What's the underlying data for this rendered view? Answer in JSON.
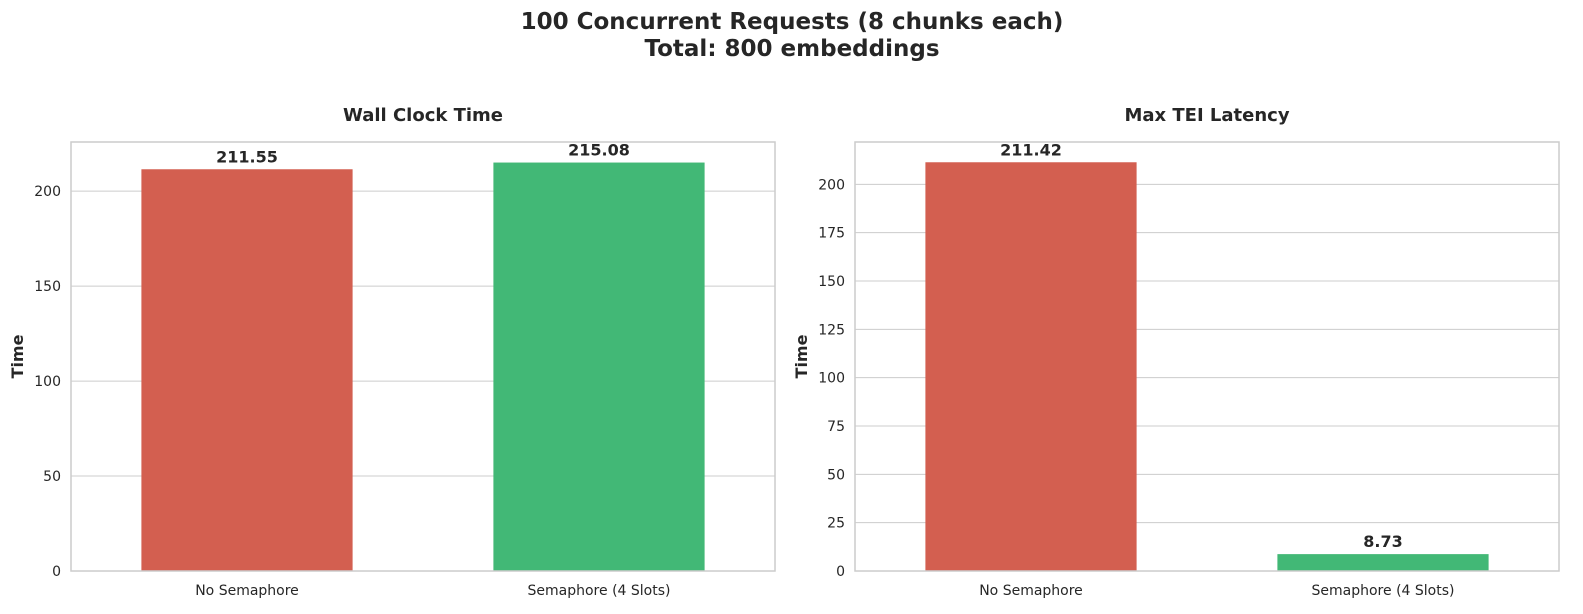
{
  "figure": {
    "title_line1": "100 Concurrent Requests (8 chunks each)",
    "title_line2": "Total: 800 embeddings"
  },
  "colors": {
    "no_semaphore": "#d35f50",
    "semaphore": "#42b876",
    "grid": "#cccccc",
    "spine": "#cccccc",
    "text": "#262626"
  },
  "chart_data": [
    {
      "type": "bar",
      "title": "Wall Clock Time",
      "xlabel": "",
      "ylabel": "Time",
      "categories": [
        "No Semaphore",
        "Semaphore (4 Slots)"
      ],
      "values": [
        211.55,
        215.08
      ],
      "value_labels": [
        "211.55",
        "215.08"
      ],
      "ylim": [
        0,
        225.9
      ],
      "yticks": [
        0,
        50,
        100,
        150,
        200
      ],
      "ytick_labels": [
        "0",
        "50",
        "100",
        "150",
        "200"
      ],
      "grid": "horizontal"
    },
    {
      "type": "bar",
      "title": "Max TEI Latency",
      "xlabel": "",
      "ylabel": "Time",
      "categories": [
        "No Semaphore",
        "Semaphore (4 Slots)"
      ],
      "values": [
        211.42,
        8.73
      ],
      "value_labels": [
        "211.42",
        "8.73"
      ],
      "ylim": [
        0,
        221.9
      ],
      "yticks": [
        0,
        25,
        50,
        75,
        100,
        125,
        150,
        175,
        200
      ],
      "ytick_labels": [
        "0",
        "25",
        "50",
        "75",
        "100",
        "125",
        "150",
        "175",
        "200"
      ],
      "grid": "horizontal"
    }
  ]
}
